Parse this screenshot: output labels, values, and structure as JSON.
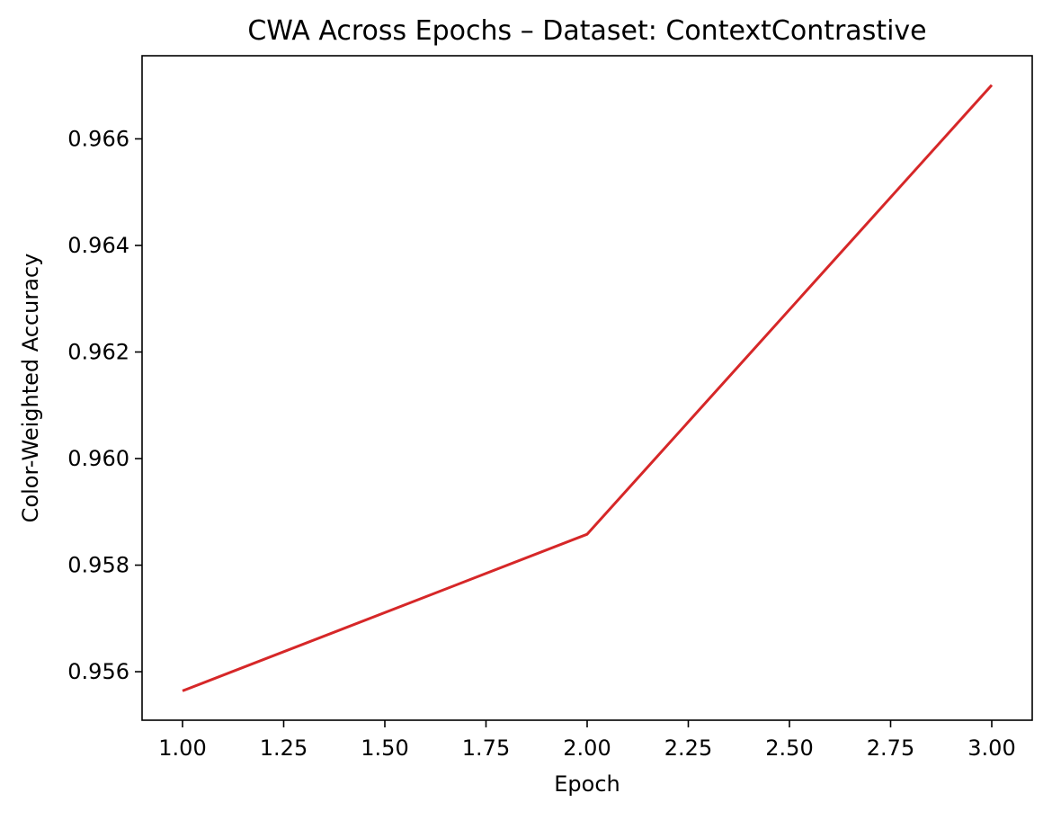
{
  "chart_data": {
    "type": "line",
    "title": "CWA Across Epochs – Dataset: ContextContrastive",
    "xlabel": "Epoch",
    "ylabel": "Color-Weighted Accuracy",
    "x": [
      1.0,
      2.0,
      3.0
    ],
    "series": [
      {
        "values": [
          0.95564,
          0.95858,
          0.96701
        ],
        "color": "#d62728"
      }
    ],
    "xlim": [
      0.9,
      3.1
    ],
    "ylim": [
      0.95509,
      0.96756
    ],
    "xticks": [
      1.0,
      1.25,
      1.5,
      1.75,
      2.0,
      2.25,
      2.5,
      2.75,
      3.0
    ],
    "xtick_labels": [
      "1.00",
      "1.25",
      "1.50",
      "1.75",
      "2.00",
      "2.25",
      "2.50",
      "2.75",
      "3.00"
    ],
    "yticks": [
      0.956,
      0.958,
      0.96,
      0.962,
      0.964,
      0.966
    ],
    "ytick_labels": [
      "0.956",
      "0.958",
      "0.960",
      "0.962",
      "0.964",
      "0.966"
    ],
    "grid": false,
    "legend": "none"
  }
}
